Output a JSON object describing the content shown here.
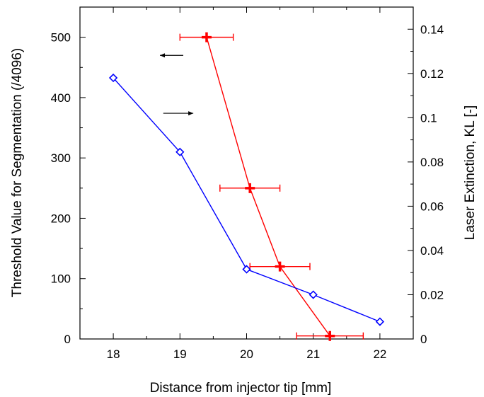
{
  "chart_data": {
    "type": "scatter",
    "xlabel": "Distance from injector tip [mm]",
    "ylabel_left": "Threshold Value for Segmentation (/4096)",
    "ylabel_right": "Laser Extinction, KL [-]",
    "xlim": [
      17.5,
      22.5
    ],
    "ylim_left": [
      0,
      550
    ],
    "ylim_right": [
      0,
      0.15
    ],
    "x_ticks": [
      "18",
      "19",
      "20",
      "21",
      "22"
    ],
    "y_left_ticks": [
      "0",
      "100",
      "200",
      "300",
      "400",
      "500"
    ],
    "y_right_ticks": [
      "0",
      "0.02",
      "0.04",
      "0.06",
      "0.08",
      "0.1",
      "0.12",
      "0.14"
    ],
    "grid": false,
    "series": [
      {
        "axis": "left",
        "color": "#ff0000",
        "marker": "plus",
        "line": true,
        "points": [
          {
            "x": 19.4,
            "y": 500,
            "xerr": [
              19.0,
              19.8
            ]
          },
          {
            "x": 20.05,
            "y": 250,
            "xerr": [
              19.6,
              20.5
            ]
          },
          {
            "x": 20.5,
            "y": 120,
            "xerr": [
              20.05,
              20.95
            ]
          },
          {
            "x": 21.25,
            "y": 5,
            "xerr": [
              20.75,
              21.75
            ]
          }
        ]
      },
      {
        "axis": "right",
        "color": "#0000ff",
        "marker": "diamond",
        "line": true,
        "points": [
          {
            "x": 18,
            "y": 0.118
          },
          {
            "x": 19,
            "y": 0.0845
          },
          {
            "x": 20,
            "y": 0.0315
          },
          {
            "x": 21,
            "y": 0.02
          },
          {
            "x": 22,
            "y": 0.0078
          }
        ]
      }
    ],
    "annotations": [
      {
        "type": "arrow",
        "direction": "left",
        "series_axis": "left",
        "x_from": 19.05,
        "x_to": 18.7,
        "y": 470
      },
      {
        "type": "arrow",
        "direction": "right",
        "series_axis": "right",
        "x_from": 18.75,
        "x_to": 19.2,
        "y": 0.102
      }
    ]
  }
}
